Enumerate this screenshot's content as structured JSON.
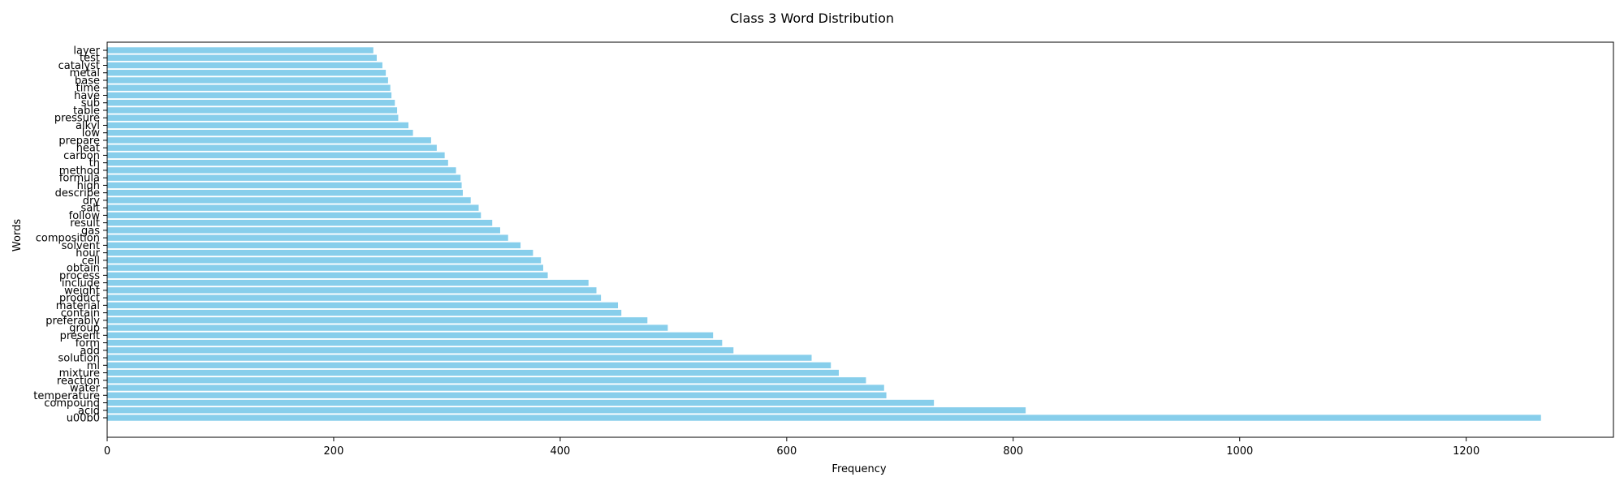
{
  "chart_data": {
    "type": "bar",
    "orientation": "horizontal",
    "title": "Class 3 Word Distribution",
    "xlabel": "Frequency",
    "ylabel": "Words",
    "xlim": [
      0,
      1330
    ],
    "xticks": [
      0,
      200,
      400,
      600,
      800,
      1000,
      1200
    ],
    "grid": false,
    "bar_color": "#87ceeb",
    "categories": [
      "u00b0",
      "acid",
      "compound",
      "temperature",
      "water",
      "reaction",
      "mixture",
      "ml",
      "solution",
      "add",
      "form",
      "present",
      "group",
      "preferably",
      "contain",
      "material",
      "product",
      "weight",
      "include",
      "process",
      "obtain",
      "cell",
      "hour",
      "solvent",
      "composition",
      "gas",
      "result",
      "follow",
      "salt",
      "dry",
      "describe",
      "high",
      "formula",
      "method",
      "th",
      "carbon",
      "heat",
      "prepare",
      "low",
      "alkyl",
      "pressure",
      "table",
      "sub",
      "have",
      "time",
      "base",
      "metal",
      "catalyst",
      "test",
      "layer"
    ],
    "values": [
      1266,
      811,
      730,
      688,
      686,
      670,
      646,
      639,
      622,
      553,
      543,
      535,
      495,
      477,
      454,
      451,
      436,
      432,
      425,
      389,
      385,
      383,
      376,
      365,
      354,
      347,
      340,
      330,
      328,
      321,
      314,
      313,
      312,
      308,
      301,
      298,
      291,
      286,
      270,
      266,
      257,
      256,
      254,
      251,
      250,
      248,
      246,
      243,
      238,
      235
    ]
  }
}
